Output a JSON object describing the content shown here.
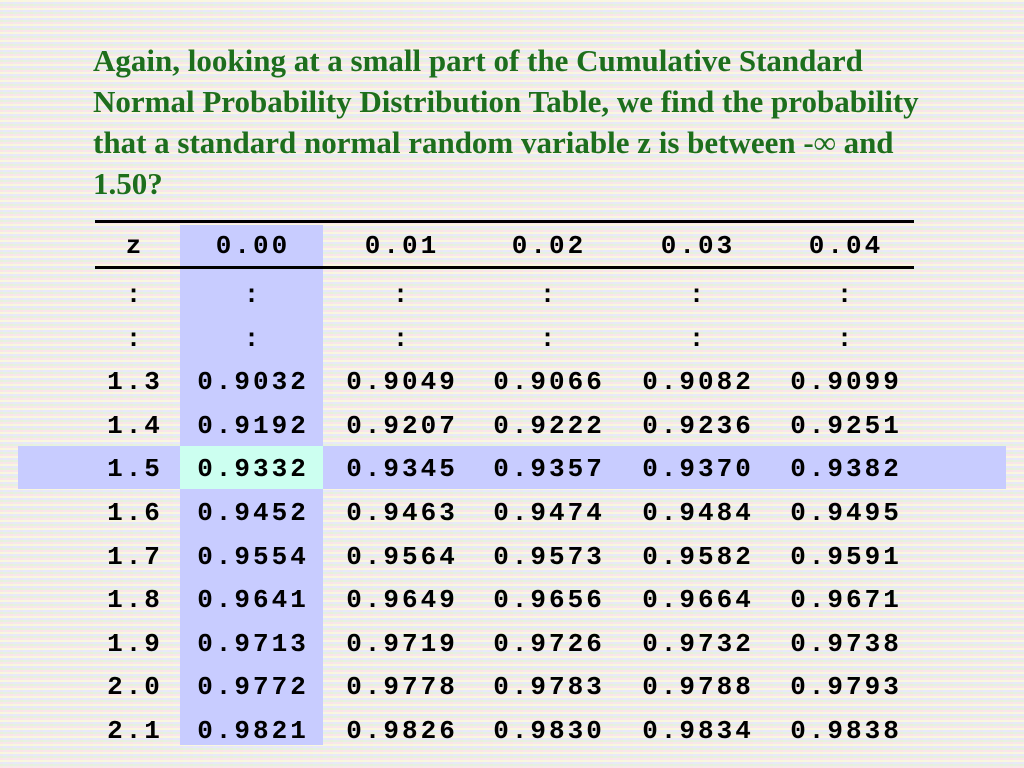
{
  "heading": "Again, looking at a small part of the Cumulative Standard Normal Probability Distribution Table, we find the probability that a standard normal random variable z is between -∞ and 1.50?",
  "table": {
    "header": [
      "z",
      "0.00",
      "0.01",
      "0.02",
      "0.03",
      "0.04"
    ],
    "rows": [
      [
        ":",
        ":",
        ":",
        ":",
        ":",
        ":"
      ],
      [
        ":",
        ":",
        ":",
        ":",
        ":",
        ":"
      ],
      [
        "1.3",
        "0.9032",
        "0.9049",
        "0.9066",
        "0.9082",
        "0.9099"
      ],
      [
        "1.4",
        "0.9192",
        "0.9207",
        "0.9222",
        "0.9236",
        "0.9251"
      ],
      [
        "1.5",
        "0.9332",
        "0.9345",
        "0.9357",
        "0.9370",
        "0.9382"
      ],
      [
        "1.6",
        "0.9452",
        "0.9463",
        "0.9474",
        "0.9484",
        "0.9495"
      ],
      [
        "1.7",
        "0.9554",
        "0.9564",
        "0.9573",
        "0.9582",
        "0.9591"
      ],
      [
        "1.8",
        "0.9641",
        "0.9649",
        "0.9656",
        "0.9664",
        "0.9671"
      ],
      [
        "1.9",
        "0.9713",
        "0.9719",
        "0.9726",
        "0.9732",
        "0.9738"
      ],
      [
        "2.0",
        "0.9772",
        "0.9778",
        "0.9783",
        "0.9788",
        "0.9793"
      ],
      [
        "2.1",
        "0.9821",
        "0.9826",
        "0.9830",
        "0.9834",
        "0.9838"
      ]
    ]
  }
}
